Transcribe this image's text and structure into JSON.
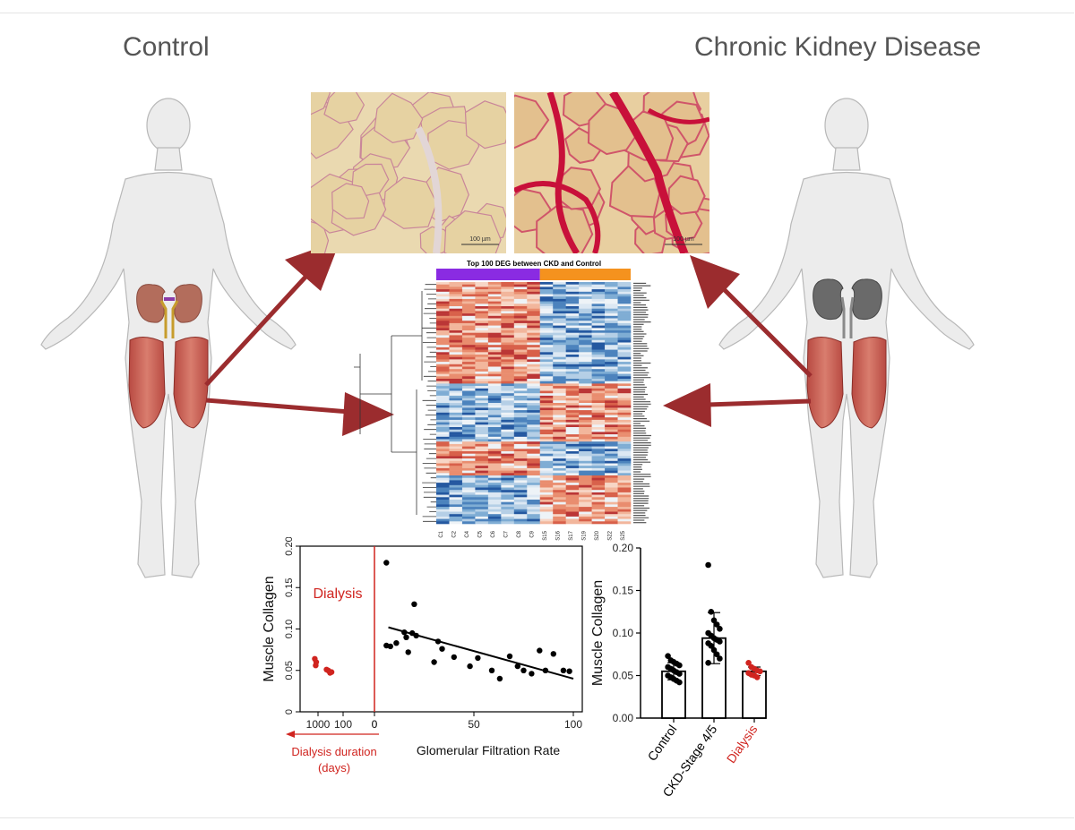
{
  "titles": {
    "left": "Control",
    "right": "Chronic Kidney Disease"
  },
  "micrographs": {
    "scale_bar_left": "100 µm",
    "scale_bar_right": "100 µm"
  },
  "heatmap": {
    "title": "Top 100 DEG between CKD and Control",
    "group_colors": {
      "control": "#8a2be2",
      "ckd": "#f5921e"
    },
    "sample_labels": [
      "C1",
      "C2",
      "C4",
      "C5",
      "C6",
      "C7",
      "C8",
      "C9",
      "S15",
      "S16",
      "S17",
      "S19",
      "S20",
      "S22",
      "S25"
    ]
  },
  "colors": {
    "arrow": "#9b2c2e",
    "dialysis": "#d0241f",
    "black": "#000000"
  },
  "chart_data": [
    {
      "type": "scatter",
      "ylabel": "Muscle Collagen",
      "xlabel": "Glomerular Filtration Rate",
      "ylim": [
        0,
        0.2
      ],
      "yticks": [
        "0",
        "0.05",
        "0.10",
        "0.15",
        "0.20"
      ],
      "xticks": [
        "0",
        "50",
        "100"
      ],
      "dialysis_xticks": [
        "1000",
        "100",
        "0"
      ],
      "annotation": "Dialysis",
      "dialysis_axis_label": "Dialysis duration (days)",
      "series": [
        {
          "name": "Dialysis",
          "color": "#d0241f",
          "points": [
            [
              1300,
              0.064
            ],
            [
              1100,
              0.056
            ],
            [
              1000,
              0.06
            ],
            [
              150,
              0.051
            ],
            [
              110,
              0.05
            ],
            [
              80,
              0.047
            ],
            [
              60,
              0.048
            ]
          ]
        },
        {
          "color": "#000000",
          "points": [
            [
              6,
              0.18
            ],
            [
              6,
              0.08
            ],
            [
              8,
              0.079
            ],
            [
              11,
              0.083
            ],
            [
              15,
              0.096
            ],
            [
              16,
              0.09
            ],
            [
              17,
              0.072
            ],
            [
              19,
              0.095
            ],
            [
              20,
              0.13
            ],
            [
              21,
              0.092
            ],
            [
              30,
              0.06
            ],
            [
              32,
              0.085
            ],
            [
              34,
              0.076
            ],
            [
              40,
              0.066
            ],
            [
              48,
              0.055
            ],
            [
              52,
              0.065
            ],
            [
              59,
              0.05
            ],
            [
              63,
              0.04
            ],
            [
              68,
              0.067
            ],
            [
              72,
              0.055
            ],
            [
              75,
              0.05
            ],
            [
              79,
              0.046
            ],
            [
              83,
              0.074
            ],
            [
              86,
              0.05
            ],
            [
              90,
              0.07
            ],
            [
              95,
              0.05
            ],
            [
              98,
              0.049
            ]
          ]
        },
        {
          "type": "line",
          "points": [
            [
              7,
              0.102
            ],
            [
              100,
              0.04
            ]
          ]
        }
      ]
    },
    {
      "type": "bar",
      "ylabel": "Muscle Collagen",
      "ylim": [
        0,
        0.2
      ],
      "yticks": [
        "0.00",
        "0.05",
        "0.10",
        "0.15",
        "0.20"
      ],
      "categories": [
        "Control",
        "CKD-Stage 4/5",
        "Dialysis"
      ],
      "category_colors": [
        "#000000",
        "#000000",
        "#d0241f"
      ],
      "values": [
        0.055,
        0.094,
        0.055
      ],
      "error": [
        0.01,
        0.03,
        0.005
      ],
      "points": [
        [
          0.073,
          0.068,
          0.066,
          0.064,
          0.062,
          0.06,
          0.058,
          0.056,
          0.054,
          0.052,
          0.05,
          0.048,
          0.046,
          0.044,
          0.042
        ],
        [
          0.18,
          0.125,
          0.115,
          0.11,
          0.105,
          0.1,
          0.097,
          0.094,
          0.092,
          0.09,
          0.088,
          0.085,
          0.08,
          0.075,
          0.07,
          0.065
        ],
        [
          0.065,
          0.06,
          0.058,
          0.056,
          0.055,
          0.053,
          0.051,
          0.05,
          0.048
        ]
      ]
    }
  ]
}
